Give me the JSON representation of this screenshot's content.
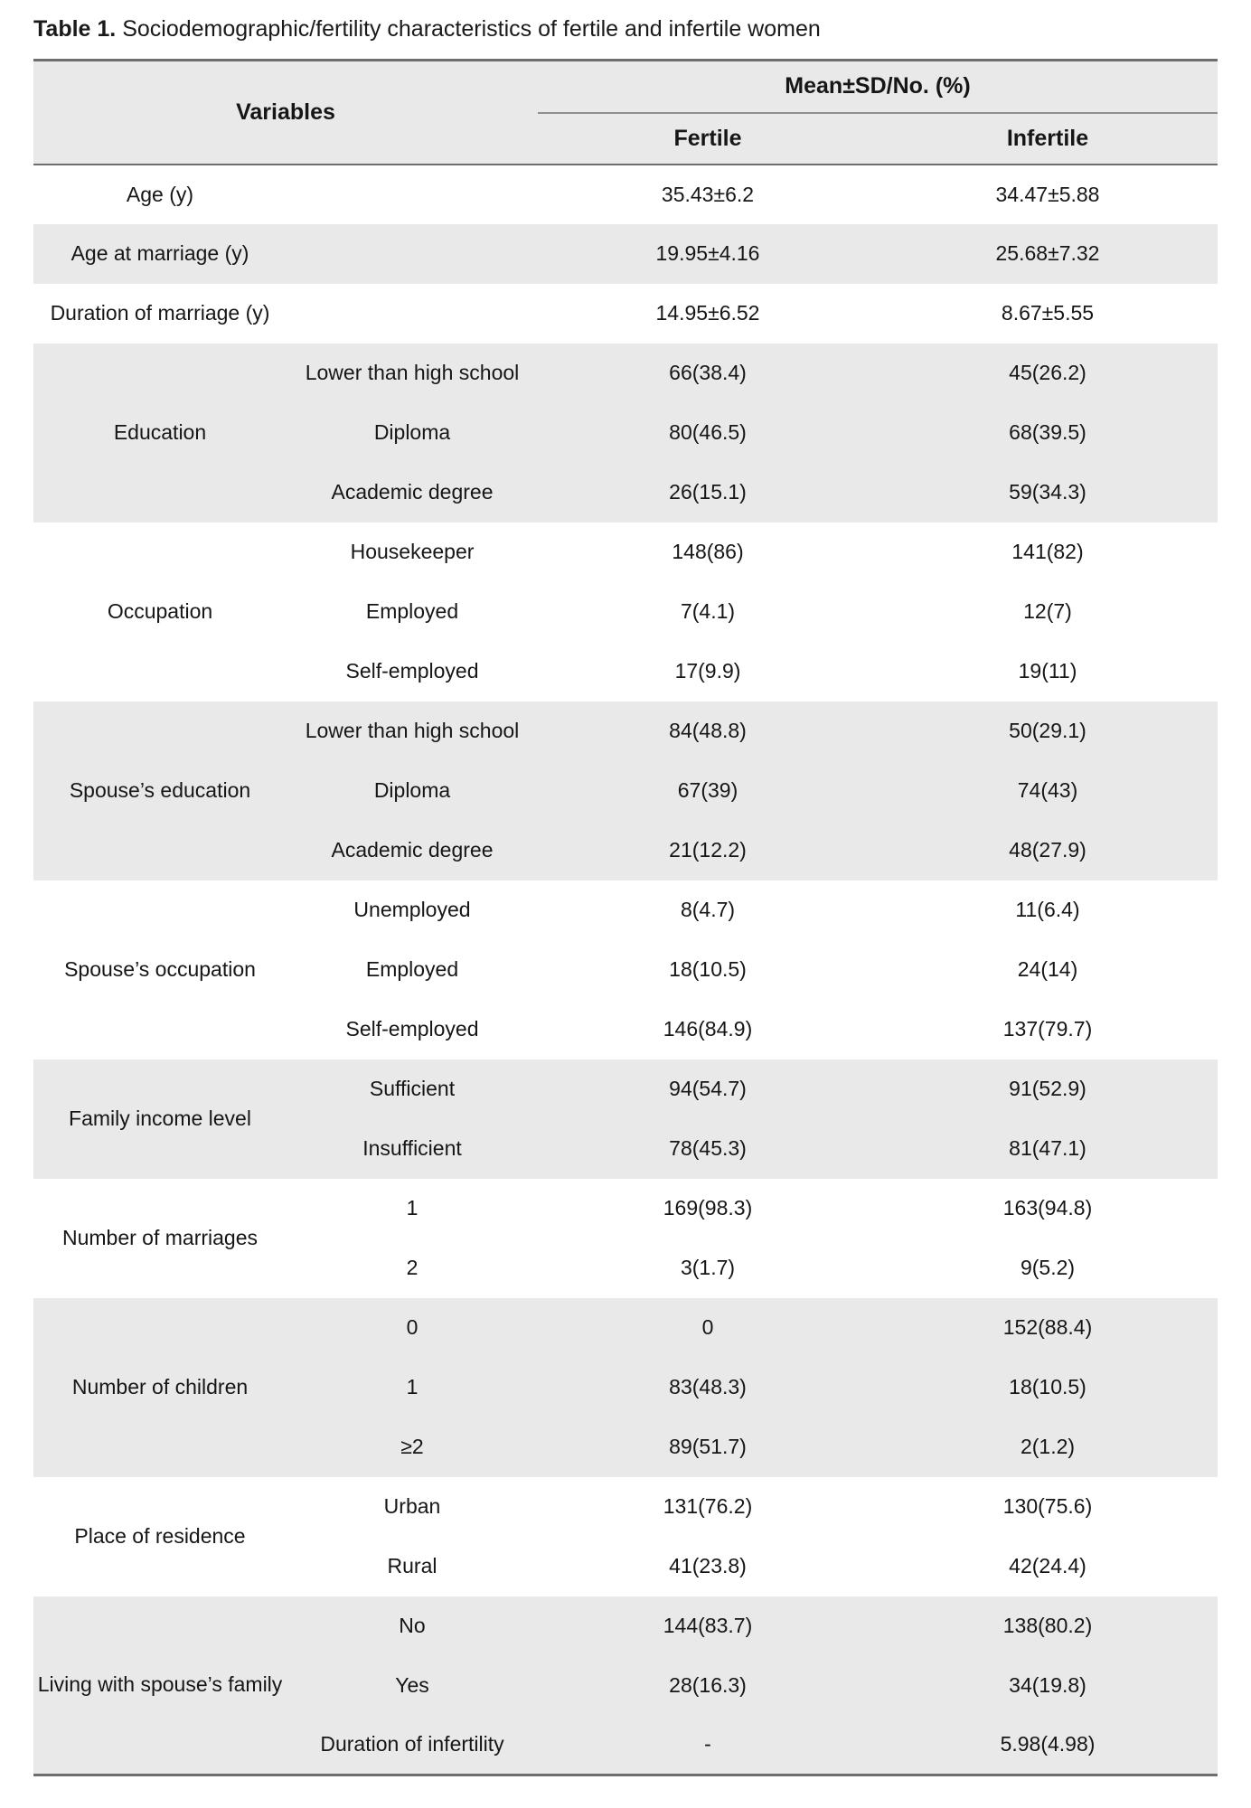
{
  "page": {
    "title_prefix": "Table 1.",
    "title_text": " Sociodemographic/fertility characteristics of fertile and infertile women"
  },
  "colors": {
    "band_gray": "#e9e9e9",
    "rule_gray": "#6e6e6e",
    "text": "#161616"
  },
  "table": {
    "header": {
      "variables": "Variables",
      "group_header": "Mean±SD/No. (%)",
      "fertile": "Fertile",
      "infertile": "Infertile"
    },
    "groups": [
      {
        "label": "Age (y)",
        "rows": [
          {
            "sub": "",
            "fertile": "35.43±6.2",
            "infertile": "34.47±5.88"
          }
        ]
      },
      {
        "label": "Age at marriage (y)",
        "rows": [
          {
            "sub": "",
            "fertile": "19.95±4.16",
            "infertile": "25.68±7.32"
          }
        ]
      },
      {
        "label": "Duration of marriage (y)",
        "rows": [
          {
            "sub": "",
            "fertile": "14.95±6.52",
            "infertile": "8.67±5.55"
          }
        ]
      },
      {
        "label": "Education",
        "rows": [
          {
            "sub": "Lower than high school",
            "fertile": "66(38.4)",
            "infertile": "45(26.2)"
          },
          {
            "sub": "Diploma",
            "fertile": "80(46.5)",
            "infertile": "68(39.5)"
          },
          {
            "sub": "Academic degree",
            "fertile": "26(15.1)",
            "infertile": "59(34.3)"
          }
        ]
      },
      {
        "label": "Occupation",
        "rows": [
          {
            "sub": "Housekeeper",
            "fertile": "148(86)",
            "infertile": "141(82)"
          },
          {
            "sub": "Employed",
            "fertile": "7(4.1)",
            "infertile": "12(7)"
          },
          {
            "sub": "Self-employed",
            "fertile": "17(9.9)",
            "infertile": "19(11)"
          }
        ]
      },
      {
        "label": "Spouse’s education",
        "rows": [
          {
            "sub": "Lower than high school",
            "fertile": "84(48.8)",
            "infertile": "50(29.1)"
          },
          {
            "sub": "Diploma",
            "fertile": "67(39)",
            "infertile": "74(43)"
          },
          {
            "sub": "Academic degree",
            "fertile": "21(12.2)",
            "infertile": "48(27.9)"
          }
        ]
      },
      {
        "label": "Spouse’s occupation",
        "rows": [
          {
            "sub": "Unemployed",
            "fertile": "8(4.7)",
            "infertile": "11(6.4)"
          },
          {
            "sub": "Employed",
            "fertile": "18(10.5)",
            "infertile": "24(14)"
          },
          {
            "sub": "Self-employed",
            "fertile": "146(84.9)",
            "infertile": "137(79.7)"
          }
        ]
      },
      {
        "label": "Family income level",
        "rows": [
          {
            "sub": "Sufficient",
            "fertile": "94(54.7)",
            "infertile": "91(52.9)"
          },
          {
            "sub": "Insufficient",
            "fertile": "78(45.3)",
            "infertile": "81(47.1)"
          }
        ]
      },
      {
        "label": "Number of marriages",
        "rows": [
          {
            "sub": "1",
            "fertile": "169(98.3)",
            "infertile": "163(94.8)"
          },
          {
            "sub": "2",
            "fertile": "3(1.7)",
            "infertile": "9(5.2)"
          }
        ]
      },
      {
        "label": "Number of children",
        "rows": [
          {
            "sub": "0",
            "fertile": "0",
            "infertile": "152(88.4)"
          },
          {
            "sub": "1",
            "fertile": "83(48.3)",
            "infertile": "18(10.5)"
          },
          {
            "sub": "≥2",
            "fertile": "89(51.7)",
            "infertile": "2(1.2)"
          }
        ]
      },
      {
        "label": "Place of residence",
        "rows": [
          {
            "sub": "Urban",
            "fertile": "131(76.2)",
            "infertile": "130(75.6)"
          },
          {
            "sub": "Rural",
            "fertile": "41(23.8)",
            "infertile": "42(24.4)"
          }
        ]
      },
      {
        "label": "Living with spouse’s family",
        "rows": [
          {
            "sub": "No",
            "fertile": "144(83.7)",
            "infertile": "138(80.2)"
          },
          {
            "sub": "Yes",
            "fertile": "28(16.3)",
            "infertile": "34(19.8)"
          },
          {
            "sub": "Duration of infertility",
            "fertile": "-",
            "infertile": "5.98(4.98)"
          }
        ]
      }
    ]
  }
}
